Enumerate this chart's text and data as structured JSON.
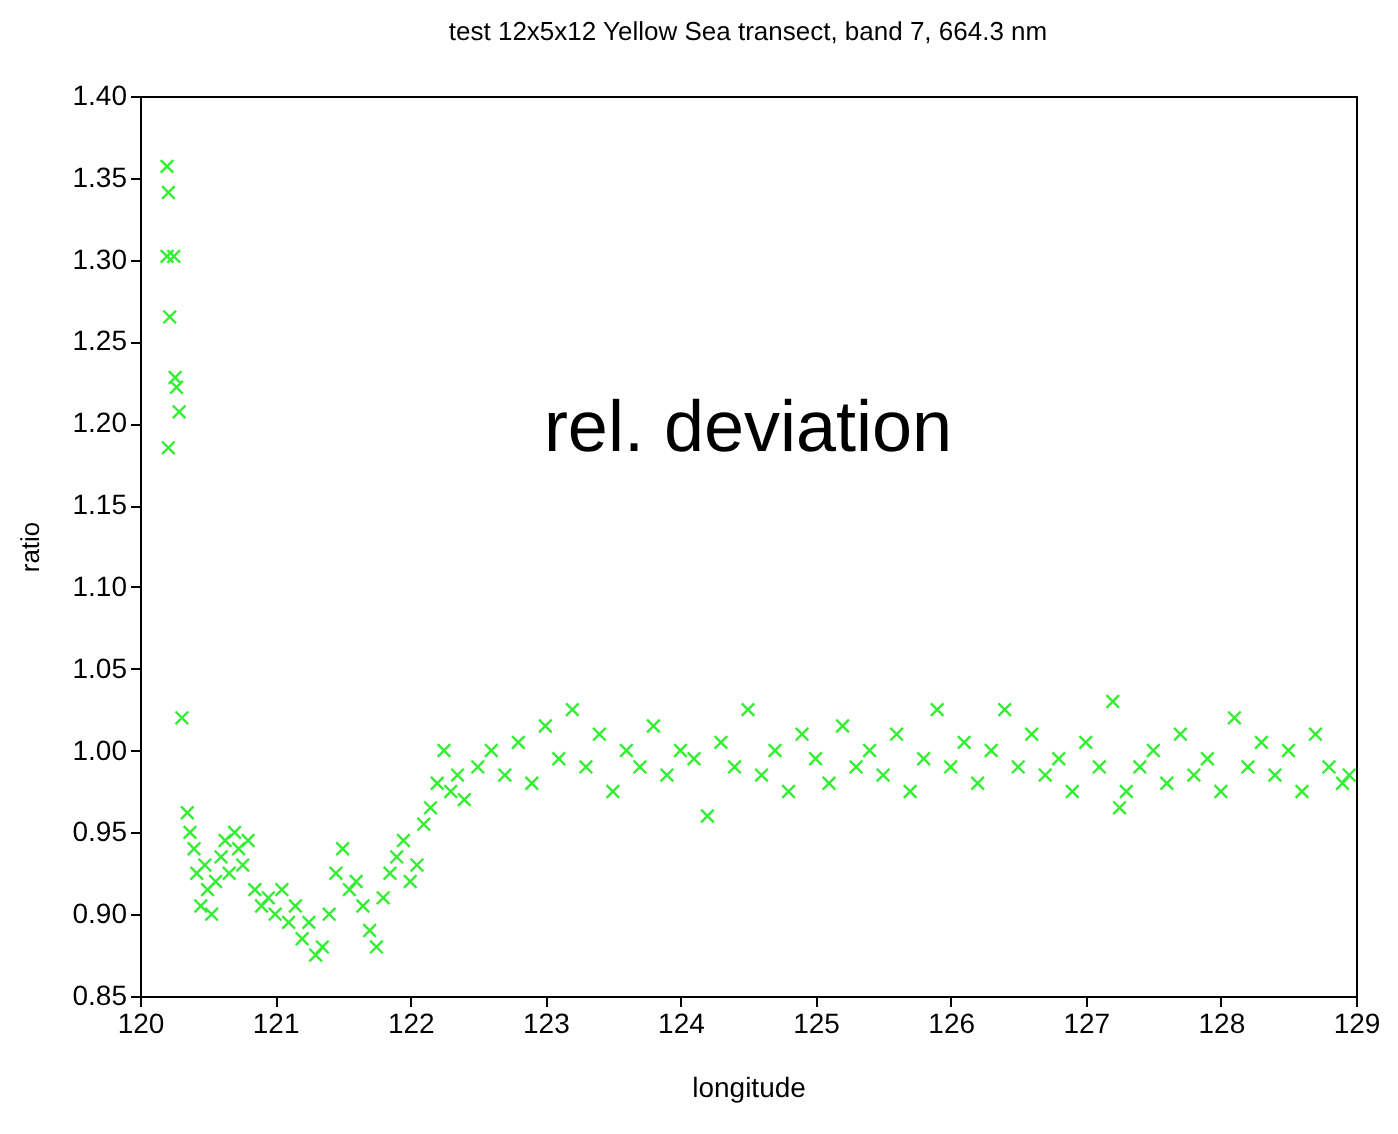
{
  "chart_data": {
    "type": "scatter",
    "title": "test 12x5x12 Yellow Sea transect, band  7,  664.3 nm",
    "xlabel": "longitude",
    "ylabel": "ratio",
    "annotations": [
      "rel. deviation"
    ],
    "marker": "cross",
    "grid": false,
    "xlim": [
      120,
      129
    ],
    "xticks": [
      120,
      121,
      122,
      123,
      124,
      125,
      126,
      127,
      128,
      129
    ],
    "ylim": [
      0.85,
      1.4
    ],
    "yticks": [
      0.85,
      {
        "value": 0.9,
        "label": "0.90"
      },
      0.95,
      {
        "value": 1.0,
        "label": "1.00"
      },
      1.05,
      {
        "value": 1.1,
        "label": "1.10"
      },
      1.15,
      {
        "value": 1.2,
        "label": "1.20"
      },
      1.25,
      {
        "value": 1.3,
        "label": "1.30"
      },
      1.35,
      {
        "value": 1.4,
        "label": "1.40"
      }
    ],
    "x": [
      120.2,
      120.21,
      120.2,
      120.22,
      120.21,
      120.25,
      120.26,
      120.27,
      120.29,
      120.31,
      120.35,
      120.37,
      120.4,
      120.42,
      120.45,
      120.48,
      120.5,
      120.53,
      120.56,
      120.6,
      120.63,
      120.66,
      120.7,
      120.73,
      120.76,
      120.8,
      120.85,
      120.9,
      120.95,
      121.0,
      121.05,
      121.1,
      121.15,
      121.2,
      121.25,
      121.3,
      121.35,
      121.4,
      121.45,
      121.5,
      121.55,
      121.6,
      121.65,
      121.7,
      121.75,
      121.8,
      121.85,
      121.9,
      121.95,
      122.0,
      122.05,
      122.1,
      122.15,
      122.2,
      122.25,
      122.3,
      122.35,
      122.4,
      122.5,
      122.6,
      122.7,
      122.8,
      122.9,
      123.0,
      123.1,
      123.2,
      123.3,
      123.4,
      123.5,
      123.6,
      123.7,
      123.8,
      123.9,
      124.0,
      124.1,
      124.2,
      124.3,
      124.4,
      124.5,
      124.6,
      124.7,
      124.8,
      124.9,
      125.0,
      125.1,
      125.2,
      125.3,
      125.4,
      125.5,
      125.6,
      125.7,
      125.8,
      125.9,
      126.0,
      126.1,
      126.2,
      126.3,
      126.4,
      126.5,
      126.6,
      126.7,
      126.8,
      126.9,
      127.0,
      127.1,
      127.2,
      127.25,
      127.3,
      127.4,
      127.5,
      127.6,
      127.7,
      127.8,
      127.9,
      128.0,
      128.1,
      128.2,
      128.3,
      128.4,
      128.5,
      128.6,
      128.7,
      128.8,
      128.9,
      128.95
    ],
    "series": [
      {
        "color": "#33ee33",
        "values": [
          1.357,
          1.341,
          1.302,
          1.265,
          1.185,
          1.302,
          1.228,
          1.222,
          1.207,
          1.02,
          0.962,
          0.95,
          0.94,
          0.925,
          0.905,
          0.93,
          0.915,
          0.9,
          0.92,
          0.935,
          0.945,
          0.925,
          0.95,
          0.94,
          0.93,
          0.945,
          0.915,
          0.905,
          0.91,
          0.9,
          0.915,
          0.895,
          0.905,
          0.885,
          0.895,
          0.875,
          0.88,
          0.9,
          0.925,
          0.94,
          0.915,
          0.92,
          0.905,
          0.89,
          0.88,
          0.91,
          0.925,
          0.935,
          0.945,
          0.92,
          0.93,
          0.955,
          0.965,
          0.98,
          1.0,
          0.975,
          0.985,
          0.97,
          0.99,
          1.0,
          0.985,
          1.005,
          0.98,
          1.015,
          0.995,
          1.025,
          0.99,
          1.01,
          0.975,
          1.0,
          0.99,
          1.015,
          0.985,
          1.0,
          0.995,
          0.96,
          1.005,
          0.99,
          1.025,
          0.985,
          1.0,
          0.975,
          1.01,
          0.995,
          0.98,
          1.015,
          0.99,
          1.0,
          0.985,
          1.01,
          0.975,
          0.995,
          1.025,
          0.99,
          1.005,
          0.98,
          1.0,
          1.025,
          0.99,
          1.01,
          0.985,
          0.995,
          0.975,
          1.005,
          0.99,
          1.03,
          0.965,
          0.975,
          0.99,
          1.0,
          0.98,
          1.01,
          0.985,
          0.995,
          0.975,
          1.02,
          0.99,
          1.005,
          0.985,
          1.0,
          0.975,
          1.01,
          0.99,
          0.98,
          0.985
        ]
      }
    ]
  }
}
